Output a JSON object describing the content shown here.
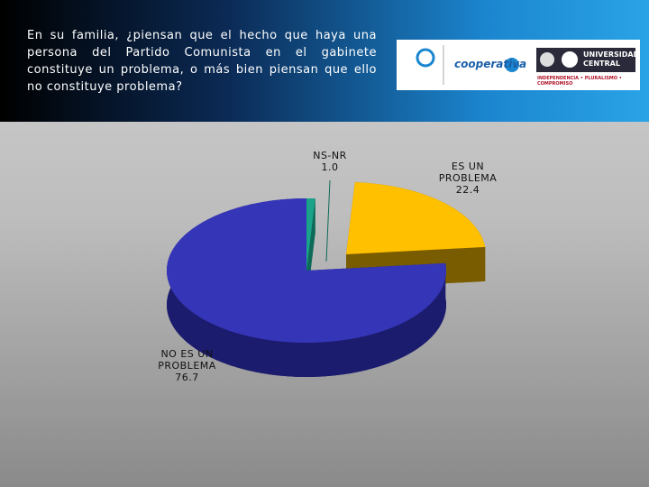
{
  "chart_data": {
    "type": "pie",
    "title": "En su familia, ¿piensan que el hecho que haya una persona del Partido Comunista en el gabinete constituye un problema, o más bien piensan que ello no constituye problema?",
    "categories": [
      "NS-NR",
      "ES UN PROBLEMA",
      "NO ES UN PROBLEMA"
    ],
    "values": [
      1.0,
      22.4,
      76.7
    ],
    "value_labels": [
      "1.0",
      "22.4",
      "76.7"
    ],
    "colors": [
      "#1aa38a",
      "#ffc000",
      "#3535b8"
    ],
    "side_colors": [
      "#0e6a58",
      "#7a5c00",
      "#1c1c6e"
    ],
    "logos": [
      "cooperativa",
      "UNIVERSIDAD CENTRAL",
      "INDEPENDENCIA • PLURALISMO • COMPROMISO"
    ]
  }
}
